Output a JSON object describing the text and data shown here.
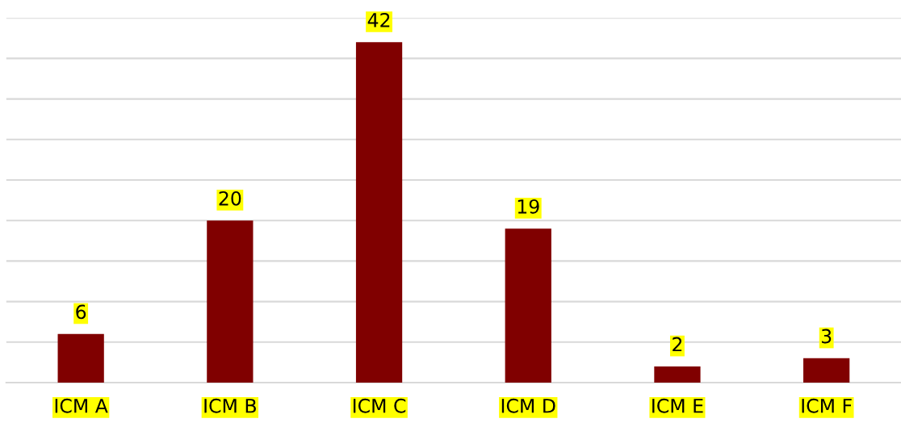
{
  "chart_data": {
    "type": "bar",
    "categories": [
      "ICM A",
      "ICM B",
      "ICM C",
      "ICM D",
      "ICM E",
      "ICM F"
    ],
    "values": [
      6,
      20,
      42,
      19,
      2,
      3
    ],
    "color": "#800000",
    "ylim": [
      0,
      45
    ],
    "yticks": [
      {
        "value": 0,
        "label": null
      },
      {
        "value": 5,
        "label": null
      },
      {
        "value": 10,
        "label": null
      },
      {
        "value": 15,
        "label": null
      },
      {
        "value": 20,
        "label": null
      },
      {
        "value": 25,
        "label": null
      },
      {
        "value": 30,
        "label": null
      },
      {
        "value": 35,
        "label": null
      },
      {
        "value": 40,
        "label": null
      },
      {
        "value": 45,
        "label": null
      }
    ],
    "grid": "y",
    "tick_labels": "x",
    "data_labels": true
  }
}
